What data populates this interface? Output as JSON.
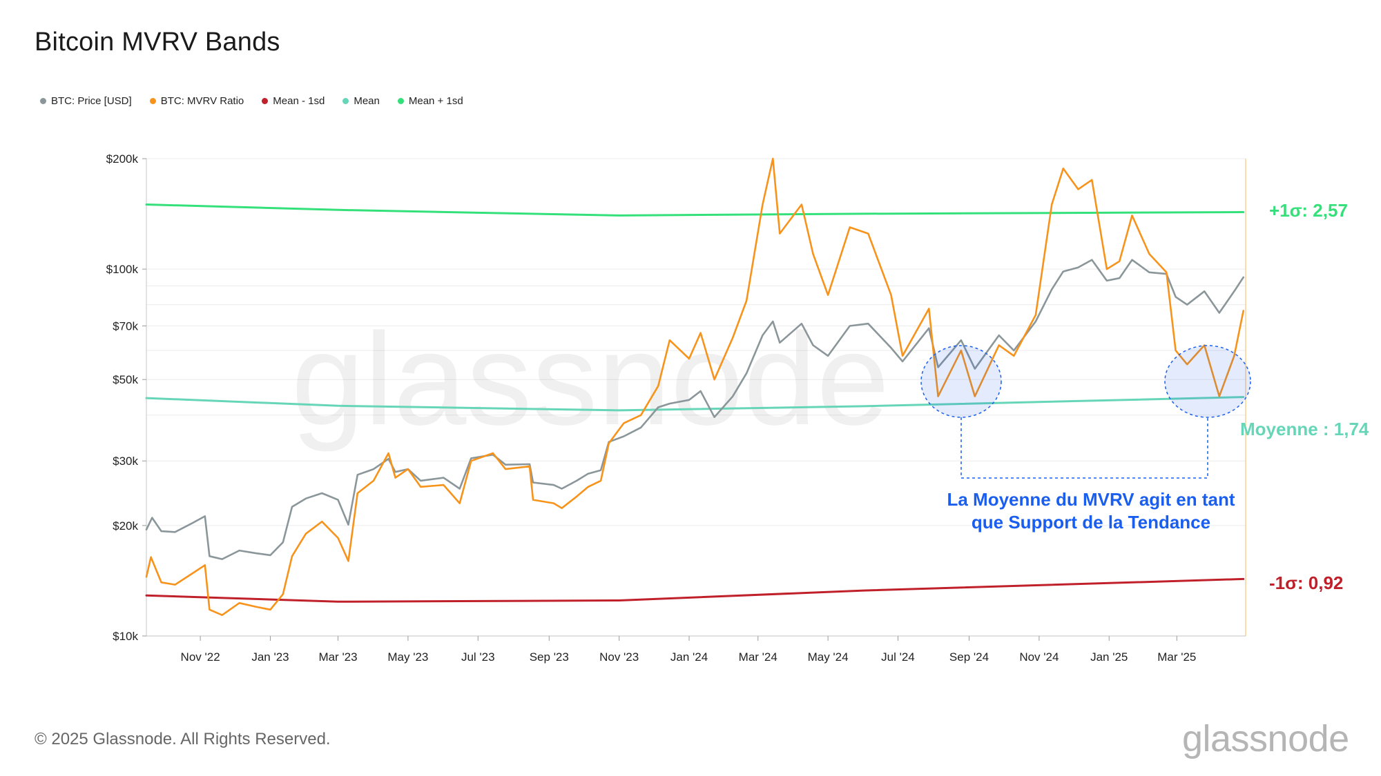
{
  "title": "Bitcoin MVRV Bands",
  "legend": [
    {
      "label": "BTC: Price [USD]",
      "color": "#8a9699"
    },
    {
      "label": "BTC: MVRV Ratio",
      "color": "#f7931a"
    },
    {
      "label": "Mean - 1sd",
      "color": "#c0202a"
    },
    {
      "label": "Mean",
      "color": "#67d6b8"
    },
    {
      "label": "Mean + 1sd",
      "color": "#33e07a"
    }
  ],
  "annotations": {
    "plus_sd": {
      "text": "+1σ: 2,57",
      "color": "#33e07a"
    },
    "mean": {
      "text": "Moyenne : 1,74",
      "color": "#67d6b8"
    },
    "minus_sd": {
      "text": "-1σ: 0,92",
      "color": "#c0202a"
    },
    "support_line1": "La Moyenne du MVRV agit en tant",
    "support_line2": "que Support de la Tendance",
    "support_color": "#1a5ef0"
  },
  "footer": "© 2025 Glassnode. All Rights Reserved.",
  "logo": "glassnode",
  "watermark": "glassnode",
  "chart_data": {
    "type": "line",
    "title": "Bitcoin MVRV Bands",
    "y_scale": "log",
    "ylim": [
      10000,
      200000
    ],
    "y_ticks": [
      {
        "value": 10000,
        "label": "$10k"
      },
      {
        "value": 20000,
        "label": "$20k"
      },
      {
        "value": 30000,
        "label": "$30k"
      },
      {
        "value": 50000,
        "label": "$50k"
      },
      {
        "value": 70000,
        "label": "$70k"
      },
      {
        "value": 100000,
        "label": "$100k"
      },
      {
        "value": 200000,
        "label": "$200k"
      }
    ],
    "xlim": [
      "2022-09-15",
      "2025-04-30"
    ],
    "x_ticks": [
      {
        "date": "2022-11-01",
        "label": "Nov '22"
      },
      {
        "date": "2023-01-01",
        "label": "Jan '23"
      },
      {
        "date": "2023-03-01",
        "label": "Mar '23"
      },
      {
        "date": "2023-05-01",
        "label": "May '23"
      },
      {
        "date": "2023-07-01",
        "label": "Jul '23"
      },
      {
        "date": "2023-09-01",
        "label": "Sep '23"
      },
      {
        "date": "2023-11-01",
        "label": "Nov '23"
      },
      {
        "date": "2024-01-01",
        "label": "Jan '24"
      },
      {
        "date": "2024-03-01",
        "label": "Mar '24"
      },
      {
        "date": "2024-05-01",
        "label": "May '24"
      },
      {
        "date": "2024-07-01",
        "label": "Jul '24"
      },
      {
        "date": "2024-09-01",
        "label": "Sep '24"
      },
      {
        "date": "2024-11-01",
        "label": "Nov '24"
      },
      {
        "date": "2025-01-01",
        "label": "Jan '25"
      },
      {
        "date": "2025-03-01",
        "label": "Mar '25"
      }
    ],
    "grid": true,
    "legend_position": "top-left",
    "series": [
      {
        "name": "BTC: Price [USD]",
        "color": "#8a9699",
        "points": [
          [
            "2022-09-15",
            19500
          ],
          [
            "2022-09-20",
            21000
          ],
          [
            "2022-09-28",
            19300
          ],
          [
            "2022-10-10",
            19200
          ],
          [
            "2022-10-25",
            20300
          ],
          [
            "2022-11-05",
            21200
          ],
          [
            "2022-11-09",
            16500
          ],
          [
            "2022-11-20",
            16200
          ],
          [
            "2022-12-05",
            17100
          ],
          [
            "2022-12-20",
            16800
          ],
          [
            "2023-01-01",
            16600
          ],
          [
            "2023-01-12",
            18000
          ],
          [
            "2023-01-20",
            22500
          ],
          [
            "2023-02-01",
            23700
          ],
          [
            "2023-02-15",
            24500
          ],
          [
            "2023-03-01",
            23500
          ],
          [
            "2023-03-10",
            20100
          ],
          [
            "2023-03-18",
            27500
          ],
          [
            "2023-04-01",
            28500
          ],
          [
            "2023-04-14",
            30400
          ],
          [
            "2023-04-20",
            28000
          ],
          [
            "2023-05-01",
            28500
          ],
          [
            "2023-05-12",
            26500
          ],
          [
            "2023-06-01",
            27000
          ],
          [
            "2023-06-15",
            25200
          ],
          [
            "2023-06-25",
            30500
          ],
          [
            "2023-07-14",
            31200
          ],
          [
            "2023-07-25",
            29300
          ],
          [
            "2023-08-15",
            29400
          ],
          [
            "2023-08-18",
            26200
          ],
          [
            "2023-09-05",
            25800
          ],
          [
            "2023-09-12",
            25200
          ],
          [
            "2023-09-25",
            26500
          ],
          [
            "2023-10-05",
            27700
          ],
          [
            "2023-10-16",
            28300
          ],
          [
            "2023-10-23",
            33800
          ],
          [
            "2023-11-05",
            35000
          ],
          [
            "2023-11-20",
            37000
          ],
          [
            "2023-12-05",
            42000
          ],
          [
            "2023-12-15",
            43000
          ],
          [
            "2024-01-01",
            44000
          ],
          [
            "2024-01-11",
            46500
          ],
          [
            "2024-01-23",
            39500
          ],
          [
            "2024-02-08",
            45000
          ],
          [
            "2024-02-20",
            52000
          ],
          [
            "2024-03-05",
            66000
          ],
          [
            "2024-03-14",
            72000
          ],
          [
            "2024-03-20",
            63000
          ],
          [
            "2024-04-08",
            71000
          ],
          [
            "2024-04-18",
            62000
          ],
          [
            "2024-05-01",
            58000
          ],
          [
            "2024-05-20",
            70000
          ],
          [
            "2024-06-05",
            71000
          ],
          [
            "2024-06-25",
            61000
          ],
          [
            "2024-07-05",
            56000
          ],
          [
            "2024-07-28",
            69000
          ],
          [
            "2024-08-05",
            54000
          ],
          [
            "2024-08-25",
            64000
          ],
          [
            "2024-09-06",
            53500
          ],
          [
            "2024-09-27",
            66000
          ],
          [
            "2024-10-10",
            60000
          ],
          [
            "2024-10-29",
            72000
          ],
          [
            "2024-11-12",
            88000
          ],
          [
            "2024-11-22",
            98500
          ],
          [
            "2024-12-05",
            101000
          ],
          [
            "2024-12-17",
            106000
          ],
          [
            "2024-12-30",
            93000
          ],
          [
            "2025-01-10",
            94500
          ],
          [
            "2025-01-21",
            106000
          ],
          [
            "2025-02-05",
            98000
          ],
          [
            "2025-02-20",
            97000
          ],
          [
            "2025-02-28",
            84000
          ],
          [
            "2025-03-10",
            80000
          ],
          [
            "2025-03-25",
            87000
          ],
          [
            "2025-04-07",
            76000
          ],
          [
            "2025-04-20",
            87000
          ],
          [
            "2025-04-28",
            95000
          ]
        ]
      },
      {
        "name": "BTC: MVRV Ratio",
        "color": "#f7931a",
        "points": [
          [
            "2022-09-15",
            14500
          ],
          [
            "2022-09-19",
            16400
          ],
          [
            "2022-09-28",
            14000
          ],
          [
            "2022-10-10",
            13800
          ],
          [
            "2022-10-25",
            14800
          ],
          [
            "2022-11-05",
            15600
          ],
          [
            "2022-11-09",
            11800
          ],
          [
            "2022-11-20",
            11400
          ],
          [
            "2022-12-05",
            12300
          ],
          [
            "2022-12-20",
            12000
          ],
          [
            "2023-01-01",
            11800
          ],
          [
            "2023-01-12",
            13000
          ],
          [
            "2023-01-20",
            16500
          ],
          [
            "2023-02-01",
            19000
          ],
          [
            "2023-02-15",
            20500
          ],
          [
            "2023-03-01",
            18500
          ],
          [
            "2023-03-10",
            16000
          ],
          [
            "2023-03-18",
            24500
          ],
          [
            "2023-04-01",
            26500
          ],
          [
            "2023-04-14",
            31500
          ],
          [
            "2023-04-20",
            27000
          ],
          [
            "2023-05-01",
            28500
          ],
          [
            "2023-05-12",
            25500
          ],
          [
            "2023-06-01",
            25800
          ],
          [
            "2023-06-15",
            23000
          ],
          [
            "2023-06-25",
            30000
          ],
          [
            "2023-07-14",
            31500
          ],
          [
            "2023-07-25",
            28500
          ],
          [
            "2023-08-15",
            29000
          ],
          [
            "2023-08-18",
            23500
          ],
          [
            "2023-09-05",
            23000
          ],
          [
            "2023-09-12",
            22300
          ],
          [
            "2023-09-25",
            24000
          ],
          [
            "2023-10-05",
            25500
          ],
          [
            "2023-10-16",
            26500
          ],
          [
            "2023-10-23",
            33500
          ],
          [
            "2023-11-05",
            38000
          ],
          [
            "2023-11-20",
            40000
          ],
          [
            "2023-12-05",
            48000
          ],
          [
            "2023-12-15",
            64000
          ],
          [
            "2024-01-01",
            57000
          ],
          [
            "2024-01-11",
            67000
          ],
          [
            "2024-01-23",
            50000
          ],
          [
            "2024-02-08",
            65000
          ],
          [
            "2024-02-20",
            82000
          ],
          [
            "2024-03-05",
            150000
          ],
          [
            "2024-03-14",
            200000
          ],
          [
            "2024-03-20",
            125000
          ],
          [
            "2024-04-08",
            150000
          ],
          [
            "2024-04-18",
            110000
          ],
          [
            "2024-05-01",
            85000
          ],
          [
            "2024-05-20",
            130000
          ],
          [
            "2024-06-05",
            125000
          ],
          [
            "2024-06-25",
            85000
          ],
          [
            "2024-07-05",
            58000
          ],
          [
            "2024-07-28",
            78000
          ],
          [
            "2024-08-05",
            45000
          ],
          [
            "2024-08-25",
            60000
          ],
          [
            "2024-09-06",
            45000
          ],
          [
            "2024-09-27",
            62000
          ],
          [
            "2024-10-10",
            58000
          ],
          [
            "2024-10-29",
            75000
          ],
          [
            "2024-11-12",
            150000
          ],
          [
            "2024-11-22",
            188000
          ],
          [
            "2024-12-05",
            165000
          ],
          [
            "2024-12-17",
            175000
          ],
          [
            "2024-12-30",
            100000
          ],
          [
            "2025-01-10",
            105000
          ],
          [
            "2025-01-21",
            140000
          ],
          [
            "2025-02-05",
            110000
          ],
          [
            "2025-02-20",
            98000
          ],
          [
            "2025-02-28",
            60000
          ],
          [
            "2025-03-10",
            55000
          ],
          [
            "2025-03-25",
            62000
          ],
          [
            "2025-04-07",
            45000
          ],
          [
            "2025-04-20",
            58000
          ],
          [
            "2025-04-28",
            77000
          ]
        ]
      },
      {
        "name": "Mean - 1sd",
        "color": "#c0202a",
        "points": [
          [
            "2022-09-15",
            12900
          ],
          [
            "2023-03-01",
            12400
          ],
          [
            "2023-11-01",
            12500
          ],
          [
            "2024-06-01",
            13300
          ],
          [
            "2025-04-28",
            14300
          ]
        ]
      },
      {
        "name": "Mean",
        "color": "#67d6b8",
        "points": [
          [
            "2022-09-15",
            44500
          ],
          [
            "2023-03-01",
            42400
          ],
          [
            "2023-11-01",
            41200
          ],
          [
            "2024-06-01",
            42300
          ],
          [
            "2025-04-28",
            44800
          ]
        ]
      },
      {
        "name": "Mean + 1sd",
        "color": "#33e07a",
        "points": [
          [
            "2022-09-15",
            150000
          ],
          [
            "2023-03-01",
            145000
          ],
          [
            "2023-11-01",
            140000
          ],
          [
            "2024-06-01",
            141500
          ],
          [
            "2025-04-28",
            143000
          ]
        ]
      }
    ]
  }
}
